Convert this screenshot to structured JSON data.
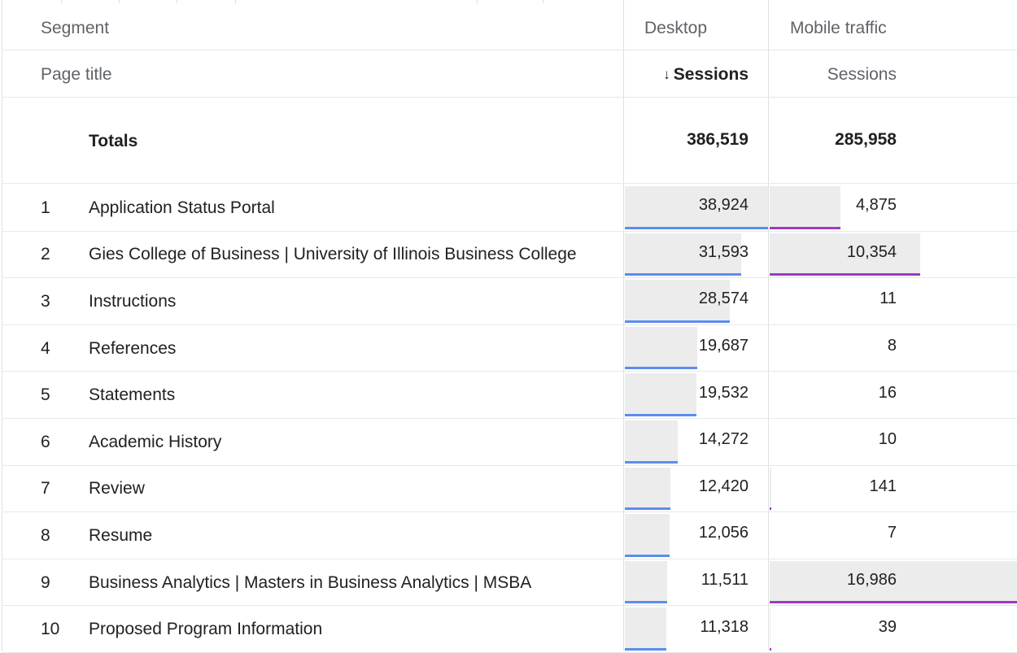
{
  "header": {
    "segment_label": "Segment",
    "desktop_label": "Desktop",
    "mobile_label": "Mobile traffic",
    "dimension_label": "Page title",
    "desktop_metric": "Sessions",
    "mobile_metric": "Sessions",
    "sort_icon": "arrow-down-icon"
  },
  "totals": {
    "label": "Totals",
    "desktop": "386,519",
    "mobile": "285,958"
  },
  "colors": {
    "desktop_bar": "#5b8def",
    "mobile_bar": "#9c3bbf",
    "bar_background": "#ececec"
  },
  "rows": [
    {
      "rank": "1",
      "title": "Application Status Portal",
      "desktop": "38,924",
      "mobile": "4,875",
      "desktop_share": 1.0,
      "mobile_share": 0.287
    },
    {
      "rank": "2",
      "title": "Gies College of Business | University of Illinois Business College",
      "desktop": "31,593",
      "mobile": "10,354",
      "desktop_share": 0.812,
      "mobile_share": 0.61
    },
    {
      "rank": "3",
      "title": "Instructions",
      "desktop": "28,574",
      "mobile": "11",
      "desktop_share": 0.734,
      "mobile_share": 0.0
    },
    {
      "rank": "4",
      "title": "References",
      "desktop": "19,687",
      "mobile": "8",
      "desktop_share": 0.506,
      "mobile_share": 0.0
    },
    {
      "rank": "5",
      "title": "Statements",
      "desktop": "19,532",
      "mobile": "16",
      "desktop_share": 0.502,
      "mobile_share": 0.0
    },
    {
      "rank": "6",
      "title": "Academic History",
      "desktop": "14,272",
      "mobile": "10",
      "desktop_share": 0.367,
      "mobile_share": 0.0
    },
    {
      "rank": "7",
      "title": "Review",
      "desktop": "12,420",
      "mobile": "141",
      "desktop_share": 0.319,
      "mobile_share": 0.008
    },
    {
      "rank": "8",
      "title": "Resume",
      "desktop": "12,056",
      "mobile": "7",
      "desktop_share": 0.31,
      "mobile_share": 0.0
    },
    {
      "rank": "9",
      "title": "Business Analytics | Masters in Business Analytics | MSBA",
      "desktop": "11,511",
      "mobile": "16,986",
      "desktop_share": 0.296,
      "mobile_share": 1.0
    },
    {
      "rank": "10",
      "title": "Proposed Program Information",
      "desktop": "11,318",
      "mobile": "39",
      "desktop_share": 0.291,
      "mobile_share": 0.002
    }
  ]
}
